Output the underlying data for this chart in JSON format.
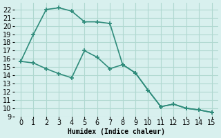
{
  "line1_x": [
    0,
    1,
    2,
    3,
    4,
    5,
    6,
    7,
    8,
    9,
    10,
    11,
    12,
    13,
    14,
    15
  ],
  "line1_y": [
    15.7,
    19.0,
    22.0,
    22.2,
    21.8,
    20.5,
    20.5,
    20.3,
    15.3,
    14.3,
    12.2,
    10.2,
    10.5,
    10.0,
    9.8,
    9.5
  ],
  "line2_x": [
    0,
    1,
    2,
    3,
    4,
    5,
    6,
    7,
    8,
    9,
    10,
    11,
    12,
    13,
    14,
    15
  ],
  "line2_y": [
    15.7,
    15.5,
    14.8,
    14.2,
    13.7,
    17.0,
    16.2,
    14.8,
    15.3,
    14.3,
    12.2,
    10.2,
    10.5,
    10.0,
    9.8,
    9.5
  ],
  "color": "#2e8b7a",
  "bg_color": "#d8f0ee",
  "grid_color": "#b0d8d0",
  "xlabel": "Humidex (Indice chaleur)",
  "xlim": [
    -0.5,
    15.5
  ],
  "ylim": [
    9,
    22.8
  ],
  "yticks": [
    9,
    10,
    11,
    12,
    13,
    14,
    15,
    16,
    17,
    18,
    19,
    20,
    21,
    22
  ],
  "xticks": [
    0,
    1,
    2,
    3,
    4,
    5,
    6,
    7,
    8,
    9,
    10,
    11,
    12,
    13,
    14,
    15
  ],
  "linewidth": 1.2,
  "fontsize": 7
}
